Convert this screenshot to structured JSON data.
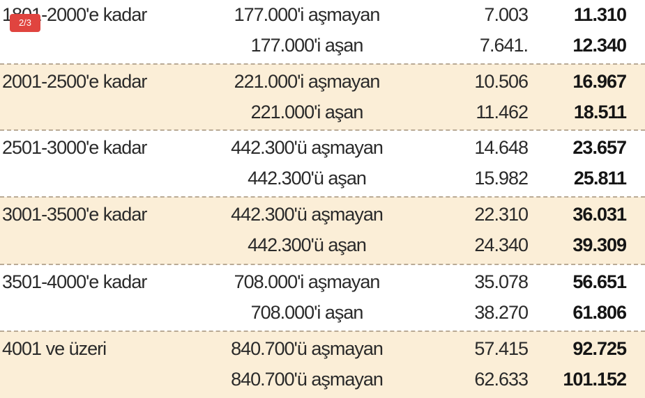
{
  "badge": "2/3",
  "table": {
    "groups": [
      {
        "label": "1801-2000'e kadar",
        "rows": [
          [
            "177.000'i aşmayan",
            "7.003",
            "11.310"
          ],
          [
            "177.000'i aşan",
            "7.641.",
            "12.340"
          ]
        ]
      },
      {
        "label": "2001-2500'e kadar",
        "rows": [
          [
            "221.000'i aşmayan",
            "10.506",
            "16.967"
          ],
          [
            "221.000'i aşan",
            "11.462",
            "18.511"
          ]
        ]
      },
      {
        "label": "2501-3000'e kadar",
        "rows": [
          [
            "442.300'ü aşmayan",
            "14.648",
            "23.657"
          ],
          [
            "442.300'ü aşan",
            "15.982",
            "25.811"
          ]
        ]
      },
      {
        "label": "3001-3500'e kadar",
        "rows": [
          [
            "442.300'ü aşmayan",
            "22.310",
            "36.031"
          ],
          [
            "442.300'ü aşan",
            "24.340",
            "39.309"
          ]
        ]
      },
      {
        "label": "3501-4000'e kadar",
        "rows": [
          [
            "708.000'i aşmayan",
            "35.078",
            "56.651"
          ],
          [
            "708.000'i aşan",
            "38.270",
            "61.806"
          ]
        ]
      },
      {
        "label": "4001 ve üzeri",
        "rows": [
          [
            "840.700'ü aşmayan",
            "57.415",
            "92.725"
          ],
          [
            "840.700'ü aşmayan",
            "62.633",
            "101.152"
          ]
        ]
      }
    ]
  }
}
